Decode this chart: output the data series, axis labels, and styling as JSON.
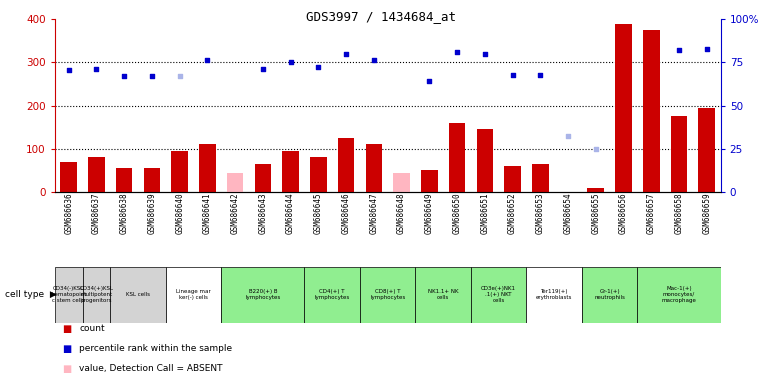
{
  "title": "GDS3997 / 1434684_at",
  "samples": [
    "GSM686636",
    "GSM686637",
    "GSM686638",
    "GSM686639",
    "GSM686640",
    "GSM686641",
    "GSM686642",
    "GSM686643",
    "GSM686644",
    "GSM686645",
    "GSM686646",
    "GSM686647",
    "GSM686648",
    "GSM686649",
    "GSM686650",
    "GSM686651",
    "GSM686652",
    "GSM686653",
    "GSM686654",
    "GSM686655",
    "GSM686656",
    "GSM686657",
    "GSM686658",
    "GSM686659"
  ],
  "count_values": [
    70,
    80,
    55,
    55,
    95,
    110,
    null,
    65,
    95,
    80,
    125,
    110,
    null,
    50,
    160,
    145,
    60,
    65,
    null,
    10,
    390,
    375,
    175,
    195
  ],
  "count_absent_vals": [
    null,
    null,
    null,
    null,
    null,
    null,
    45,
    null,
    null,
    null,
    null,
    null,
    45,
    null,
    null,
    null,
    null,
    null,
    null,
    null,
    null,
    null,
    null,
    null
  ],
  "rank_values": [
    283,
    285,
    268,
    268,
    null,
    305,
    null,
    285,
    300,
    290,
    320,
    305,
    null,
    258,
    325,
    320,
    270,
    270,
    null,
    null,
    null,
    null,
    328,
    332
  ],
  "rank_absent_vals": [
    null,
    null,
    null,
    null,
    268,
    null,
    null,
    null,
    null,
    null,
    null,
    null,
    null,
    null,
    null,
    null,
    null,
    null,
    130,
    100,
    null,
    null,
    null,
    null
  ],
  "cell_type_groups": [
    {
      "label": "CD34(-)KSL\nhematopoiet\nc stem cells",
      "start": 0,
      "end": 0,
      "color": "#d3d3d3"
    },
    {
      "label": "CD34(+)KSL\nmultipotent\nprogenitors",
      "start": 1,
      "end": 1,
      "color": "#d3d3d3"
    },
    {
      "label": "KSL cells",
      "start": 2,
      "end": 3,
      "color": "#d3d3d3"
    },
    {
      "label": "Lineage mar\nker(-) cells",
      "start": 4,
      "end": 5,
      "color": "#ffffff"
    },
    {
      "label": "B220(+) B\nlymphocytes",
      "start": 6,
      "end": 8,
      "color": "#90ee90"
    },
    {
      "label": "CD4(+) T\nlymphocytes",
      "start": 9,
      "end": 10,
      "color": "#90ee90"
    },
    {
      "label": "CD8(+) T\nlymphocytes",
      "start": 11,
      "end": 12,
      "color": "#90ee90"
    },
    {
      "label": "NK1.1+ NK\ncells",
      "start": 13,
      "end": 14,
      "color": "#90ee90"
    },
    {
      "label": "CD3e(+)NK1\n.1(+) NKT\ncells",
      "start": 15,
      "end": 16,
      "color": "#90ee90"
    },
    {
      "label": "Ter119(+)\nerythroblasts",
      "start": 17,
      "end": 18,
      "color": "#ffffff"
    },
    {
      "label": "Gr-1(+)\nneutrophils",
      "start": 19,
      "end": 20,
      "color": "#90ee90"
    },
    {
      "label": "Mac-1(+)\nmonocytes/\nmacrophage",
      "start": 21,
      "end": 23,
      "color": "#90ee90"
    }
  ],
  "ylim_left": [
    0,
    400
  ],
  "ylim_right": [
    0,
    100
  ],
  "yticks_left": [
    0,
    100,
    200,
    300,
    400
  ],
  "yticks_right": [
    0,
    25,
    50,
    75,
    100
  ],
  "bar_color": "#cc0000",
  "bar_absent_color": "#ffb6c1",
  "rank_color": "#0000cd",
  "rank_absent_color": "#aab4e8",
  "grid_dotted_at": [
    100,
    200,
    300
  ]
}
